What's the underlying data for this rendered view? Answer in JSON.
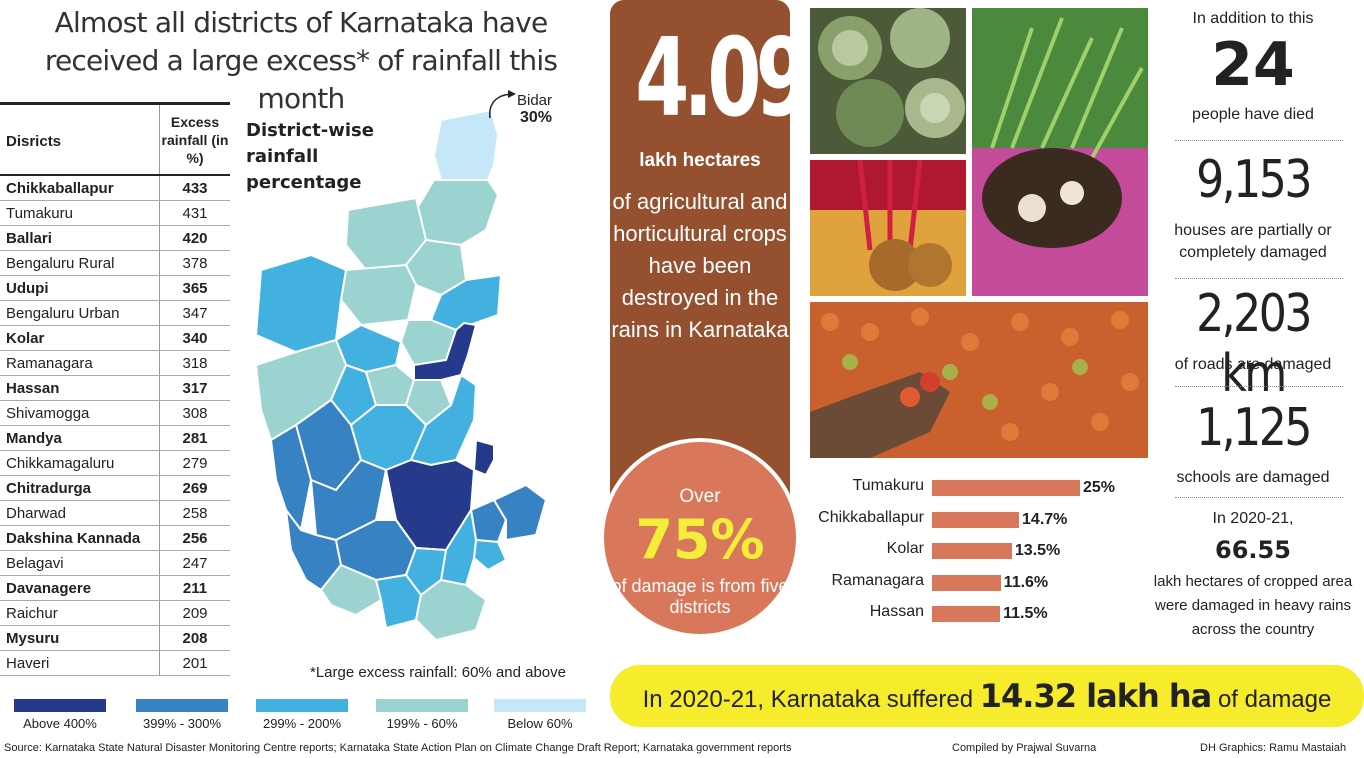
{
  "title": "Almost all districts of Karnataka have received a large excess* of rainfall this month",
  "table": {
    "col1": "Disricts",
    "col2": "Excess rainfall (in %)",
    "rows": [
      {
        "name": "Chikkaballapur",
        "value": "433"
      },
      {
        "name": "Tumakuru",
        "value": "431"
      },
      {
        "name": "Ballari",
        "value": "420"
      },
      {
        "name": "Bengaluru Rural",
        "value": "378"
      },
      {
        "name": "Udupi",
        "value": "365"
      },
      {
        "name": "Bengaluru Urban",
        "value": "347"
      },
      {
        "name": "Kolar",
        "value": "340"
      },
      {
        "name": "Ramanagara",
        "value": "318"
      },
      {
        "name": "Hassan",
        "value": "317"
      },
      {
        "name": "Shivamogga",
        "value": "308"
      },
      {
        "name": "Mandya",
        "value": "281"
      },
      {
        "name": "Chikkamagaluru",
        "value": "279"
      },
      {
        "name": "Chitradurga",
        "value": "269"
      },
      {
        "name": "Dharwad",
        "value": "258"
      },
      {
        "name": "Dakshina Kannada",
        "value": "256"
      },
      {
        "name": "Belagavi",
        "value": "247"
      },
      {
        "name": "Davanagere",
        "value": "211"
      },
      {
        "name": "Raichur",
        "value": "209"
      },
      {
        "name": "Mysuru",
        "value": "208"
      },
      {
        "name": "Haveri",
        "value": "201"
      }
    ]
  },
  "map": {
    "caption": "District-wise rainfall percentage",
    "bidar_label": "Bidar",
    "bidar_value": "30%",
    "footnote": "*Large excess rainfall:  60% and above"
  },
  "legend": [
    {
      "label": "Above 400%",
      "color": "#263a8c"
    },
    {
      "label": "399% - 300%",
      "color": "#3682c2"
    },
    {
      "label": "299% - 200%",
      "color": "#43b1df"
    },
    {
      "label": "199% - 60%",
      "color": "#9ad3d0"
    },
    {
      "label": "Below 60%",
      "color": "#c4e8f7"
    }
  ],
  "panel": {
    "big_number": "4.09",
    "unit": "lakh hectares",
    "text": "of agricultural and horticultural crops have been destroyed in the rains in Karnataka"
  },
  "circle": {
    "over": "Over",
    "percent": "75%",
    "text": "of damage is from five districts"
  },
  "chart_data": {
    "type": "bar",
    "orientation": "horizontal",
    "categories": [
      "Tumakuru",
      "Chikkaballapur",
      "Kolar",
      "Ramanagara",
      "Hassan"
    ],
    "values": [
      25,
      14.7,
      13.5,
      11.6,
      11.5
    ],
    "value_labels": [
      "25%",
      "14.7%",
      "13.5%",
      "11.6%",
      "11.5%"
    ],
    "xlim": [
      0,
      25
    ],
    "color": "#d9775a"
  },
  "stats": {
    "intro": "In addition to this",
    "deaths": "24",
    "deaths_label": "people have died",
    "houses": "9,153",
    "houses_label": "houses are partially or completely damaged",
    "roads": "2,203 km",
    "roads_label": "of roads are damaged",
    "schools": "1,125",
    "schools_label": "schools are damaged",
    "year": "In 2020-21,",
    "national": "66.55",
    "national_label": "lakh hectares of cropped area were damaged in heavy rains across the country"
  },
  "banner": {
    "prefix": "In 2020-21, Karnataka suffered",
    "value": "14.32 lakh ha",
    "suffix": "of damage"
  },
  "footer": {
    "source": "Source: Karnataka State Natural Disaster Monitoring Centre reports; Karnataka State Action Plan on Climate Change Draft Report; Karnataka government reports",
    "compiled": "Compiled by Prajwal Suvarna",
    "credit": "DH Graphics: Ramu Mastaiah"
  }
}
